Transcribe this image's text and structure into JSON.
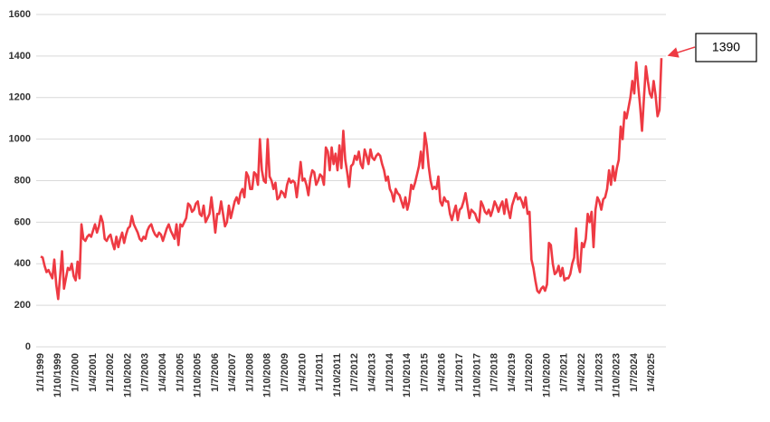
{
  "chart_data": {
    "type": "line",
    "color": "#ee3a43",
    "grid": true,
    "ylim": [
      0,
      1600
    ],
    "yticks": [
      0,
      200,
      400,
      600,
      800,
      1000,
      1200,
      1400,
      1600
    ],
    "categories": [
      "1/1/1999",
      null,
      null,
      null,
      null,
      null,
      null,
      null,
      null,
      "1/10/1999",
      null,
      null,
      null,
      null,
      null,
      null,
      null,
      null,
      "1/7/2000",
      null,
      null,
      null,
      null,
      null,
      null,
      null,
      null,
      "1/4/2001",
      null,
      null,
      null,
      null,
      null,
      null,
      null,
      null,
      "1/1/2002",
      null,
      null,
      null,
      null,
      null,
      null,
      null,
      null,
      "1/10/2002",
      null,
      null,
      null,
      null,
      null,
      null,
      null,
      null,
      "1/7/2003",
      null,
      null,
      null,
      null,
      null,
      null,
      null,
      null,
      "1/4/2004",
      null,
      null,
      null,
      null,
      null,
      null,
      null,
      null,
      "1/1/2005",
      null,
      null,
      null,
      null,
      null,
      null,
      null,
      null,
      "1/10/2005",
      null,
      null,
      null,
      null,
      null,
      null,
      null,
      null,
      "1/7/2006",
      null,
      null,
      null,
      null,
      null,
      null,
      null,
      null,
      "1/4/2007",
      null,
      null,
      null,
      null,
      null,
      null,
      null,
      null,
      "1/1/2008",
      null,
      null,
      null,
      null,
      null,
      null,
      null,
      null,
      "1/10/2008",
      null,
      null,
      null,
      null,
      null,
      null,
      null,
      null,
      "1/7/2009",
      null,
      null,
      null,
      null,
      null,
      null,
      null,
      null,
      "1/4/2010",
      null,
      null,
      null,
      null,
      null,
      null,
      null,
      null,
      "1/1/2011",
      null,
      null,
      null,
      null,
      null,
      null,
      null,
      null,
      "1/10/2011",
      null,
      null,
      null,
      null,
      null,
      null,
      null,
      null,
      "1/7/2012",
      null,
      null,
      null,
      null,
      null,
      null,
      null,
      null,
      "1/4/2013",
      null,
      null,
      null,
      null,
      null,
      null,
      null,
      null,
      "1/1/2014",
      null,
      null,
      null,
      null,
      null,
      null,
      null,
      null,
      "1/10/2014",
      null,
      null,
      null,
      null,
      null,
      null,
      null,
      null,
      "1/7/2015",
      null,
      null,
      null,
      null,
      null,
      null,
      null,
      null,
      "1/4/2016",
      null,
      null,
      null,
      null,
      null,
      null,
      null,
      null,
      "1/1/2017",
      null,
      null,
      null,
      null,
      null,
      null,
      null,
      null,
      "1/10/2017",
      null,
      null,
      null,
      null,
      null,
      null,
      null,
      null,
      "1/7/2018",
      null,
      null,
      null,
      null,
      null,
      null,
      null,
      null,
      "1/4/2019",
      null,
      null,
      null,
      null,
      null,
      null,
      null,
      null,
      "1/1/2020",
      null,
      null,
      null,
      null,
      null,
      null,
      null,
      null,
      "1/10/2020",
      null,
      null,
      null,
      null,
      null,
      null,
      null,
      null,
      "1/7/2021",
      null,
      null,
      null,
      null,
      null,
      null,
      null,
      null,
      "1/4/2022",
      null,
      null,
      null,
      null,
      null,
      null,
      null,
      null,
      "1/1/2023",
      null,
      null,
      null,
      null,
      null,
      null,
      null,
      null,
      "1/10/2023",
      null,
      null,
      null,
      null,
      null,
      null,
      null,
      null,
      "1/7/2024",
      null,
      null,
      null,
      null,
      null,
      null,
      null,
      null,
      "1/4/2025",
      null,
      null,
      null,
      null,
      null
    ],
    "values": [
      435,
      430,
      390,
      360,
      370,
      350,
      330,
      420,
      300,
      230,
      340,
      460,
      280,
      330,
      380,
      370,
      400,
      340,
      320,
      410,
      330,
      590,
      520,
      510,
      530,
      540,
      530,
      560,
      590,
      550,
      580,
      630,
      600,
      520,
      510,
      530,
      540,
      500,
      470,
      530,
      480,
      520,
      550,
      500,
      540,
      570,
      580,
      630,
      590,
      570,
      550,
      520,
      510,
      530,
      520,
      560,
      580,
      590,
      560,
      540,
      530,
      550,
      540,
      510,
      540,
      570,
      590,
      560,
      540,
      520,
      590,
      490,
      590,
      580,
      600,
      620,
      690,
      680,
      650,
      660,
      690,
      700,
      640,
      630,
      680,
      600,
      620,
      640,
      720,
      640,
      550,
      640,
      640,
      700,
      640,
      580,
      600,
      680,
      620,
      660,
      700,
      720,
      690,
      740,
      760,
      720,
      840,
      820,
      760,
      760,
      840,
      830,
      780,
      1000,
      850,
      800,
      790,
      1000,
      820,
      800,
      760,
      790,
      710,
      720,
      750,
      740,
      720,
      780,
      810,
      790,
      800,
      790,
      720,
      800,
      890,
      800,
      810,
      780,
      730,
      810,
      850,
      840,
      780,
      800,
      830,
      820,
      780,
      960,
      940,
      850,
      960,
      880,
      930,
      850,
      970,
      860,
      1040,
      900,
      840,
      770,
      870,
      880,
      920,
      900,
      940,
      880,
      860,
      950,
      920,
      880,
      950,
      910,
      900,
      920,
      930,
      920,
      880,
      850,
      800,
      820,
      760,
      740,
      700,
      760,
      740,
      730,
      700,
      670,
      720,
      660,
      700,
      780,
      760,
      790,
      830,
      870,
      940,
      860,
      1030,
      970,
      870,
      800,
      760,
      770,
      760,
      820,
      700,
      680,
      720,
      700,
      700,
      640,
      610,
      650,
      680,
      610,
      660,
      670,
      700,
      740,
      680,
      620,
      660,
      650,
      640,
      610,
      600,
      700,
      680,
      650,
      640,
      660,
      630,
      660,
      700,
      680,
      650,
      680,
      700,
      640,
      710,
      660,
      620,
      680,
      710,
      740,
      710,
      720,
      700,
      670,
      720,
      640,
      650,
      420,
      380,
      320,
      270,
      260,
      280,
      290,
      270,
      300,
      500,
      490,
      400,
      350,
      360,
      390,
      340,
      380,
      320,
      330,
      330,
      350,
      400,
      430,
      570,
      400,
      360,
      500,
      480,
      520,
      640,
      600,
      650,
      480,
      660,
      720,
      700,
      660,
      710,
      720,
      760,
      850,
      780,
      870,
      800,
      860,
      900,
      1060,
      1000,
      1130,
      1100,
      1150,
      1200,
      1280,
      1220,
      1370,
      1260,
      1160,
      1040,
      1200,
      1350,
      1280,
      1220,
      1200,
      1280,
      1210,
      1110,
      1140,
      1390
    ]
  }
}
